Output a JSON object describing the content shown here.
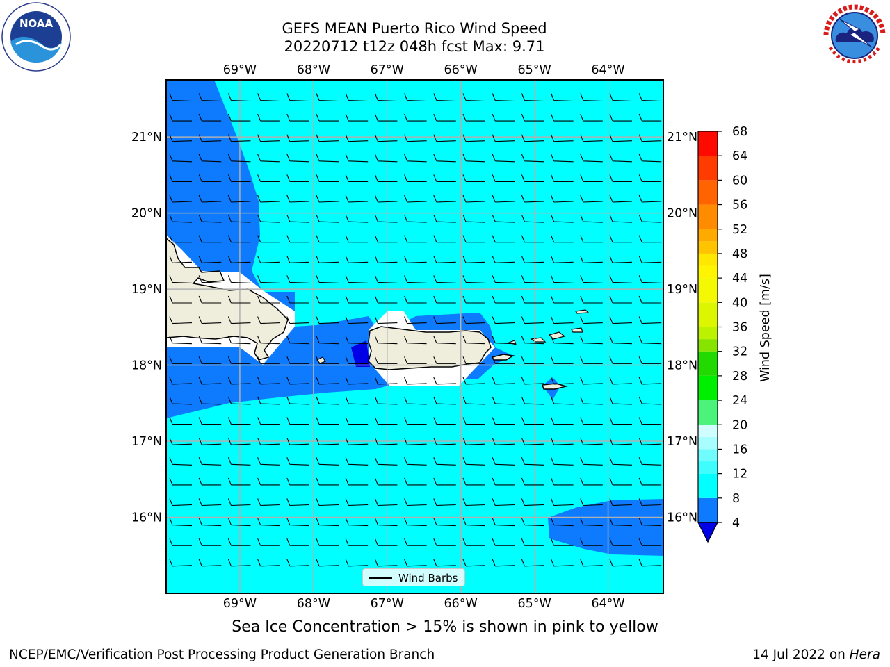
{
  "header": {
    "title_line1": "GEFS MEAN Puerto Rico Wind Speed",
    "title_line2": "20220712 t12z 048h fcst   Max: 9.71"
  },
  "logos": {
    "left": {
      "icon": "noaa-logo",
      "text": "NOAA",
      "ring_text": "NATIONAL OCEANIC AND ATMOSPHERIC ADMINISTRATION · U.S. DEPARTMENT OF COMMERCE"
    },
    "right": {
      "icon": "nws-logo",
      "ring_text": "NATIONAL WEATHER SERVICE"
    }
  },
  "map": {
    "lon_labels": [
      "69°W",
      "68°W",
      "67°W",
      "66°W",
      "65°W",
      "64°W"
    ],
    "lat_labels": [
      "21°N",
      "20°N",
      "19°N",
      "18°N",
      "17°N",
      "16°N"
    ],
    "lon_values": [
      -69,
      -68,
      -67,
      -66,
      -65,
      -64
    ],
    "lat_values": [
      21,
      20,
      19,
      18,
      17,
      16
    ],
    "lon_range": [
      -70.0,
      -63.25
    ],
    "lat_range": [
      15.0,
      21.75
    ],
    "land_color": "#efeedc",
    "ocean_color": "#00ffff",
    "wind_barb_direction": "easterly"
  },
  "legend": {
    "wind_barbs_label": "Wind Barbs"
  },
  "colorbar": {
    "label": "Wind Speed [m/s]",
    "ticks": [
      "68",
      "64",
      "60",
      "56",
      "52",
      "48",
      "44",
      "40",
      "36",
      "32",
      "28",
      "24",
      "20",
      "16",
      "12",
      "8",
      "4"
    ],
    "levels": [
      4,
      8,
      10,
      12,
      14,
      16,
      18,
      20,
      24,
      28,
      32,
      34,
      36,
      40,
      44,
      46,
      48,
      50,
      52,
      56,
      60,
      64,
      68
    ],
    "colors": [
      "#0e7bff",
      "#00ffff",
      "#00ffff",
      "#40fdfd",
      "#70fcfc",
      "#a8fefe",
      "#d0fefe",
      "#4cf37a",
      "#00ef00",
      "#22da00",
      "#86e400",
      "#bcf200",
      "#dcf600",
      "#f4f800",
      "#fff500",
      "#ffe800",
      "#ffc400",
      "#ffaa00",
      "#ff8c00",
      "#ff6400",
      "#ff3c00",
      "#ff0a00"
    ],
    "under_color": "#0000e6"
  },
  "footer": {
    "sea_ice_note": "Sea Ice Concentration > 15% is shown in pink to yellow",
    "credit_left": "NCEP/EMC/Verification Post Processing Product Generation Branch",
    "credit_date": "14 Jul 2022 on ",
    "credit_host": "Hera"
  }
}
